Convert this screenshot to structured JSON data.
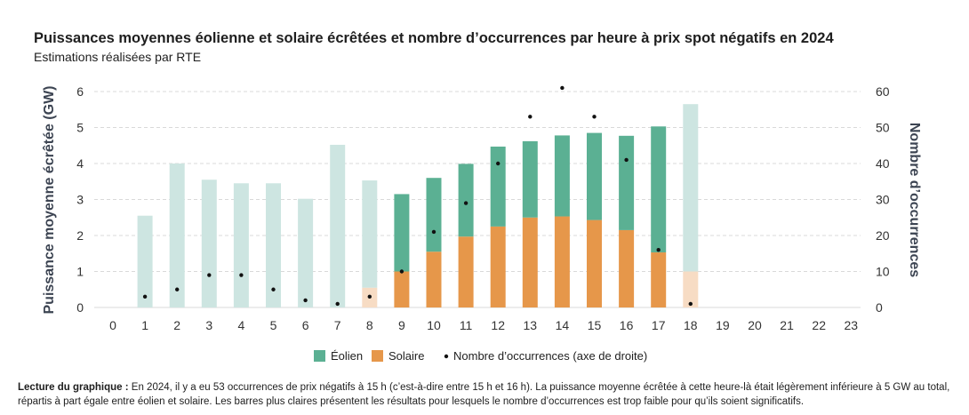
{
  "header": {
    "title": "Puissances moyennes éolienne et solaire écrêtées et nombre d’occurrences par heure à prix spot négatifs en 2024",
    "subtitle": "Estimations réalisées par RTE"
  },
  "note": {
    "lead": "Lecture du graphique :",
    "text": " En 2024, il y a eu 53 occurrences de prix négatifs à 15 h (c’est-à-dire entre 15 h et 16 h). La puissance moyenne écrêtée à cette heure-là était légèrement inférieure à 5 GW au total, répartis à part égale entre éolien et solaire. Les barres plus claires présentent les résultats pour lesquels le nombre d’occurrences est trop faible pour qu’ils soient significatifs."
  },
  "chart_data": {
    "type": "bar",
    "stacked": true,
    "categories": [
      "0",
      "1",
      "2",
      "3",
      "4",
      "5",
      "6",
      "7",
      "8",
      "9",
      "10",
      "11",
      "12",
      "13",
      "14",
      "15",
      "16",
      "17",
      "18",
      "19",
      "20",
      "21",
      "22",
      "23"
    ],
    "ylabel": "Puissance moyenne écrêtée (GW)",
    "y2label": "Nombre d’occurrences",
    "ylim": [
      0,
      6
    ],
    "y2lim": [
      0,
      60
    ],
    "yticks": [
      "0",
      "1",
      "2",
      "3",
      "4",
      "5",
      "6"
    ],
    "y2ticks": [
      "0",
      "10",
      "20",
      "30",
      "40",
      "50",
      "60"
    ],
    "grid": true,
    "legend_position": "bottom",
    "series": [
      {
        "name": "Éolien",
        "color": "#5bb093",
        "light_color": "#cde5e1",
        "values": [
          null,
          2.55,
          4.0,
          3.55,
          3.45,
          3.45,
          3.02,
          4.52,
          2.98,
          2.15,
          2.05,
          2.02,
          2.22,
          2.12,
          2.25,
          2.42,
          2.62,
          3.5,
          4.65,
          null,
          null,
          null,
          null,
          null
        ]
      },
      {
        "name": "Solaire",
        "color": "#e6974a",
        "light_color": "#f7dcc4",
        "values": [
          null,
          0,
          0,
          0,
          0,
          0,
          0,
          0,
          0.55,
          1.0,
          1.55,
          1.97,
          2.25,
          2.5,
          2.53,
          2.43,
          2.15,
          1.53,
          1.0,
          null,
          null,
          null,
          null,
          null
        ]
      },
      {
        "name": "Nombre d’occurrences (axe de droite)",
        "type": "scatter",
        "axis": "right",
        "color": "#111111",
        "values": [
          null,
          3,
          5,
          9,
          9,
          5,
          2,
          1,
          3,
          10,
          21,
          29,
          40,
          53,
          61,
          53,
          41,
          16,
          1,
          null,
          null,
          null,
          null,
          null
        ]
      }
    ],
    "significant": [
      false,
      false,
      false,
      false,
      false,
      false,
      false,
      false,
      false,
      true,
      true,
      true,
      true,
      true,
      true,
      true,
      true,
      true,
      false,
      false,
      false,
      false,
      false,
      false
    ]
  }
}
